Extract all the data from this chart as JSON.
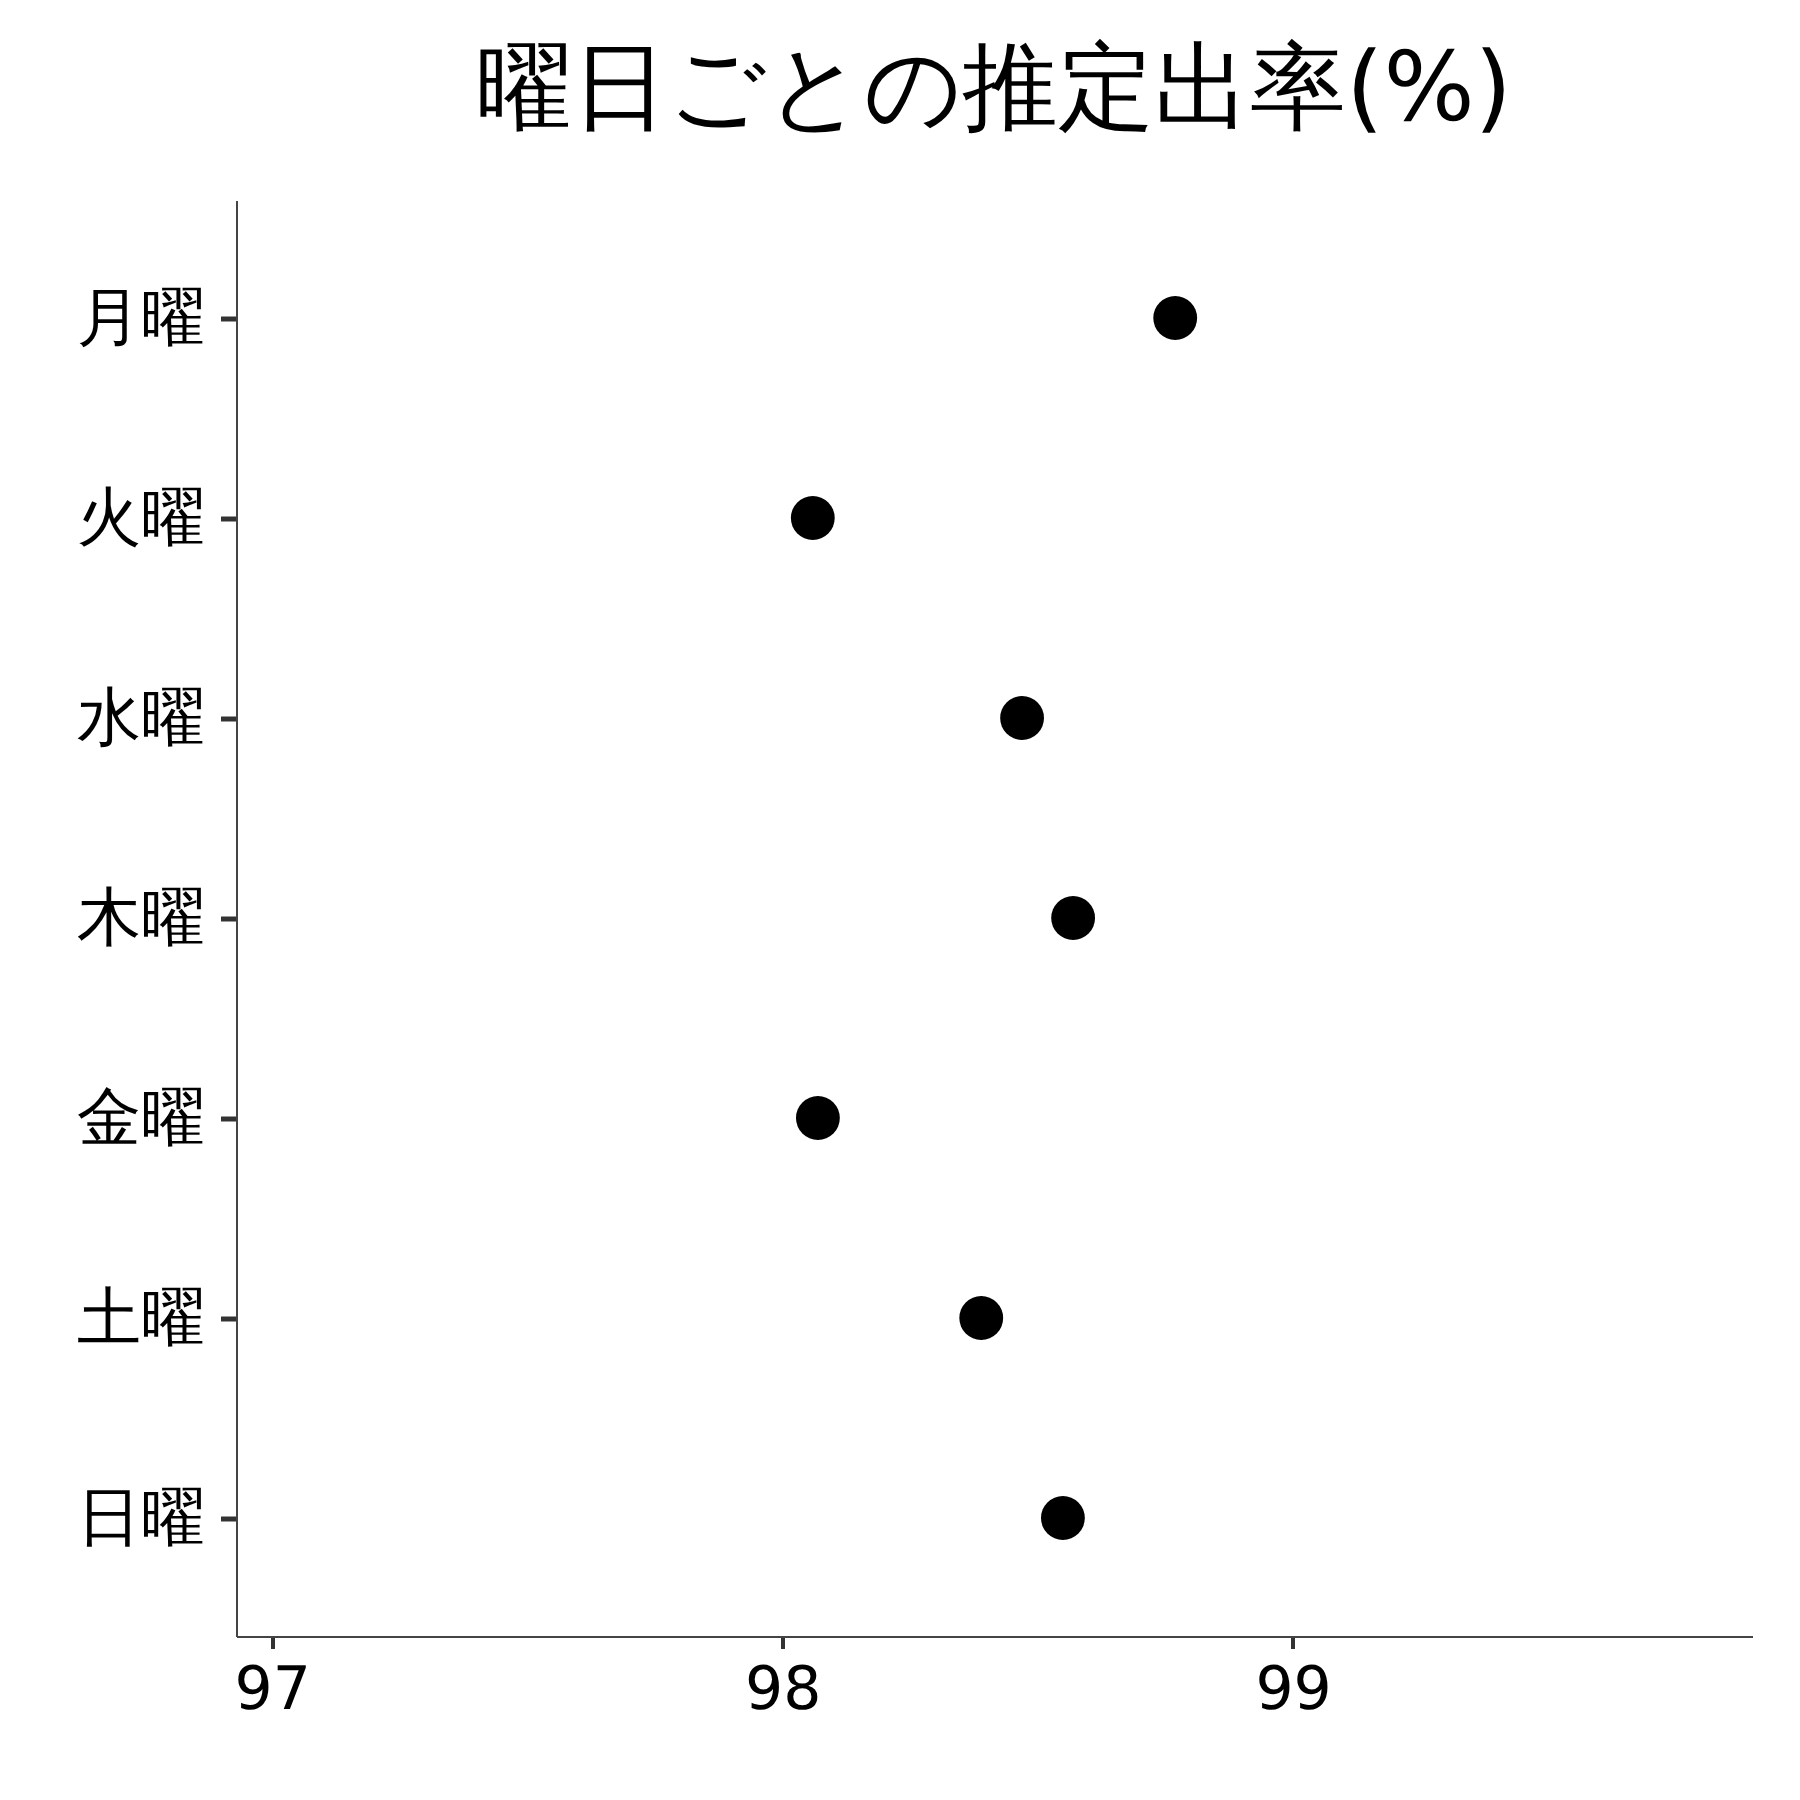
{
  "chart_data": {
    "type": "scatter",
    "title": "曜日ごとの推定出率(%)",
    "orientation": "horizontal",
    "categories": [
      "月曜",
      "火曜",
      "水曜",
      "木曜",
      "金曜",
      "土曜",
      "日曜"
    ],
    "values": [
      98.77,
      98.06,
      98.47,
      98.57,
      98.07,
      98.39,
      98.55
    ],
    "color": "#000000",
    "marker": "circle",
    "xlim": [
      96.93,
      99.9
    ],
    "xticks": [
      97,
      98,
      99
    ],
    "grid": false
  }
}
